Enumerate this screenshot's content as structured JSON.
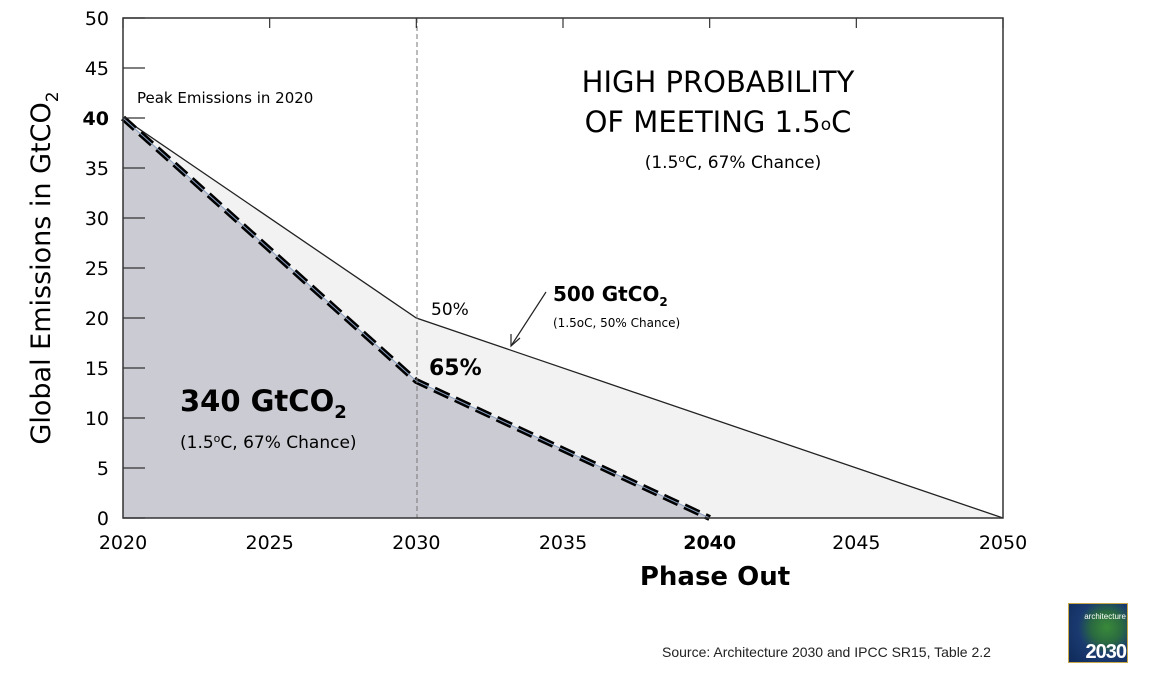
{
  "chart_data": {
    "type": "area",
    "xlabel": "Phase Out",
    "ylabel": "Global Emissions in GtCO2",
    "xlim": [
      2020,
      2050
    ],
    "ylim": [
      0,
      50
    ],
    "x_ticks": [
      "2020",
      "2025",
      "2030",
      "2035",
      "2040",
      "2045",
      "2050"
    ],
    "y_ticks": [
      "0",
      "5",
      "10",
      "15",
      "20",
      "25",
      "30",
      "35",
      "40",
      "45",
      "50"
    ],
    "series": [
      {
        "name": "500 GtCO2",
        "x": [
          2020,
          2030,
          2050
        ],
        "y": [
          40,
          20,
          0
        ],
        "fill": "#f2f2f2",
        "style": "solid"
      },
      {
        "name": "340 GtCO2",
        "x": [
          2020,
          2030,
          2040
        ],
        "y": [
          40,
          13.7,
          0
        ],
        "fill": "#cbcbd3",
        "style": "dashed"
      }
    ],
    "annotations": {
      "peak": "Peak Emissions in 2020",
      "headline1": "HIGH PROBABILITY",
      "headline2": "OF MEETING 1.5oC",
      "headline_sub": "(1.5oC, 67% Chance)",
      "pct50": "50%",
      "pct65": "65%",
      "budget500": "500 GtCO2",
      "budget500_sub": "(1.5oC, 50% Chance)",
      "budget340": "340 GtCO2",
      "budget340_sub": "(1.5oC, 67% Chance)"
    },
    "grid": false
  },
  "source": "Source: Architecture 2030 and IPCC SR15, Table 2.2",
  "logo": {
    "word": "architecture",
    "number": "2030"
  }
}
